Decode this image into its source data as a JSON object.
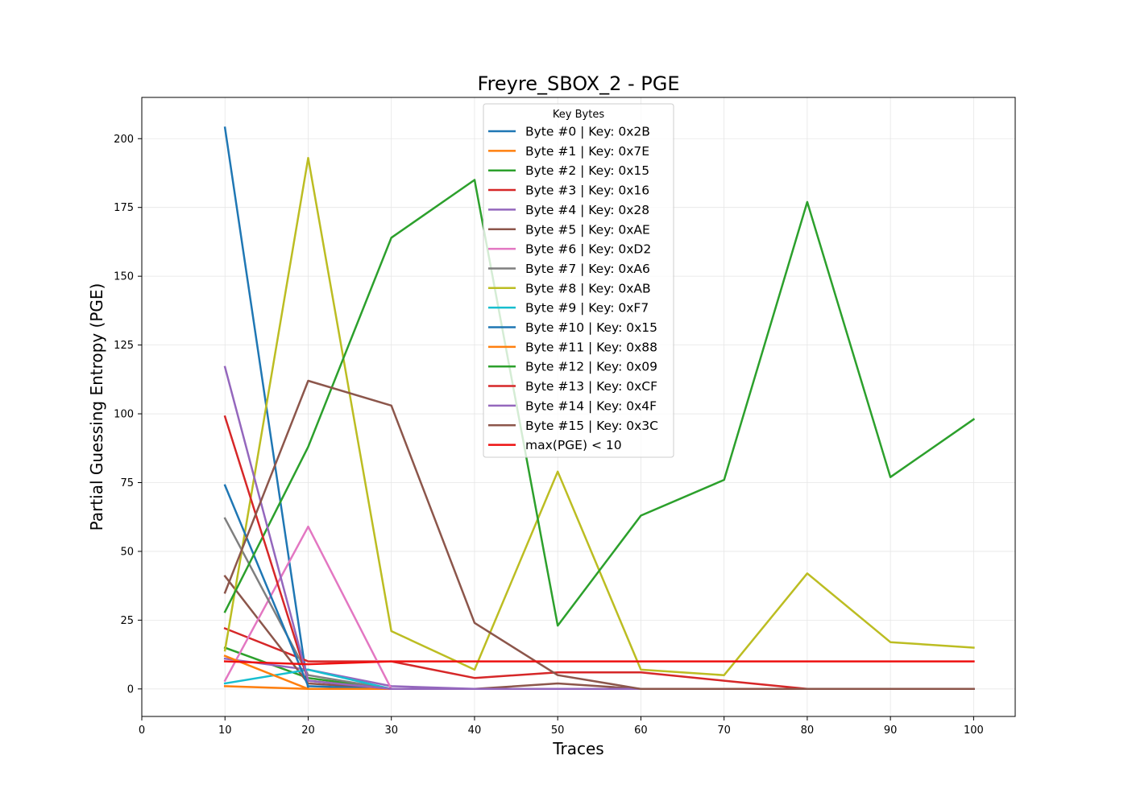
{
  "chart_data": {
    "type": "line",
    "title": "Freyre_SBOX_2 - PGE",
    "xlabel": "Traces",
    "ylabel": "Partial Guessing Entropy (PGE)",
    "xlim": [
      0,
      105
    ],
    "ylim": [
      -10,
      215
    ],
    "xticks": [
      0,
      10,
      20,
      30,
      40,
      50,
      60,
      70,
      80,
      90,
      100
    ],
    "yticks": [
      0,
      25,
      50,
      75,
      100,
      125,
      150,
      175,
      200
    ],
    "grid": true,
    "legend_title": "Key Bytes",
    "legend_position": "upper center",
    "x": [
      10,
      20,
      30,
      40,
      50,
      60,
      70,
      80,
      90,
      100
    ],
    "series": [
      {
        "name": "Byte #0 | Key: 0x2B",
        "color": "#1f77b4",
        "values": [
          204,
          0,
          0,
          0,
          0,
          0,
          0,
          0,
          0,
          0
        ]
      },
      {
        "name": "Byte #1 | Key: 0x7E",
        "color": "#ff7f0e",
        "values": [
          1,
          0,
          0,
          0,
          0,
          0,
          0,
          0,
          0,
          0
        ]
      },
      {
        "name": "Byte #2 | Key: 0x15",
        "color": "#2ca02c",
        "values": [
          15,
          4,
          0,
          0,
          0,
          0,
          0,
          0,
          0,
          0
        ]
      },
      {
        "name": "Byte #3 | Key: 0x16",
        "color": "#d62728",
        "values": [
          22,
          10,
          10,
          4,
          6,
          6,
          3,
          0,
          0,
          0
        ]
      },
      {
        "name": "Byte #4 | Key: 0x28",
        "color": "#9467bd",
        "values": [
          11,
          7,
          1,
          0,
          0,
          0,
          0,
          0,
          0,
          0
        ]
      },
      {
        "name": "Byte #5 | Key: 0xAE",
        "color": "#8c564b",
        "values": [
          41,
          2,
          0,
          0,
          2,
          0,
          0,
          0,
          0,
          0
        ]
      },
      {
        "name": "Byte #6 | Key: 0xD2",
        "color": "#e377c2",
        "values": [
          3,
          59,
          0,
          0,
          0,
          0,
          0,
          0,
          0,
          0
        ]
      },
      {
        "name": "Byte #7 | Key: 0xA6",
        "color": "#7f7f7f",
        "values": [
          62,
          5,
          0,
          0,
          0,
          0,
          0,
          0,
          0,
          0
        ]
      },
      {
        "name": "Byte #8 | Key: 0xAB",
        "color": "#bcbd22",
        "values": [
          14,
          193,
          21,
          7,
          79,
          7,
          5,
          42,
          17,
          15
        ]
      },
      {
        "name": "Byte #9 | Key: 0xF7",
        "color": "#17becf",
        "values": [
          2,
          7,
          0,
          0,
          0,
          0,
          0,
          0,
          0,
          0
        ]
      },
      {
        "name": "Byte #10 | Key: 0x15",
        "color": "#1f77b4",
        "values": [
          74,
          1,
          0,
          0,
          0,
          0,
          0,
          0,
          0,
          0
        ]
      },
      {
        "name": "Byte #11 | Key: 0x88",
        "color": "#ff7f0e",
        "values": [
          12,
          0,
          0,
          0,
          0,
          0,
          0,
          0,
          0,
          0
        ]
      },
      {
        "name": "Byte #12 | Key: 0x09",
        "color": "#2ca02c",
        "values": [
          28,
          88,
          164,
          185,
          23,
          63,
          76,
          177,
          77,
          98
        ]
      },
      {
        "name": "Byte #13 | Key: 0xCF",
        "color": "#d62728",
        "values": [
          99,
          3,
          0,
          0,
          0,
          0,
          0,
          0,
          0,
          0
        ]
      },
      {
        "name": "Byte #14 | Key: 0x4F",
        "color": "#9467bd",
        "values": [
          117,
          3,
          0,
          0,
          0,
          0,
          0,
          0,
          0,
          0
        ]
      },
      {
        "name": "Byte #15 | Key: 0x3C",
        "color": "#8c564b",
        "values": [
          35,
          112,
          103,
          24,
          5,
          0,
          0,
          0,
          0,
          0
        ]
      },
      {
        "name": "max(PGE) < 10",
        "color": "#ee1111",
        "values": [
          10,
          9,
          10,
          10,
          10,
          10,
          10,
          10,
          10,
          10
        ]
      }
    ]
  }
}
